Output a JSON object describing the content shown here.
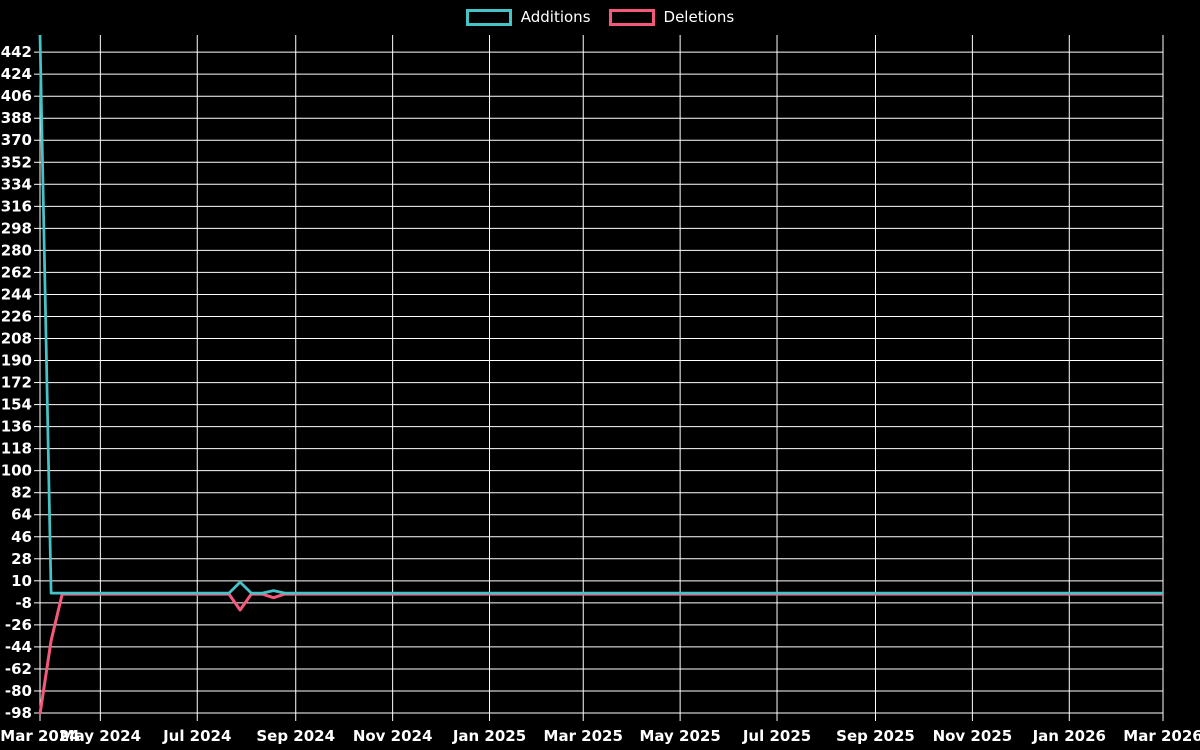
{
  "legend": {
    "items": [
      {
        "label": "Additions"
      },
      {
        "label": "Deletions"
      }
    ]
  },
  "chart_data": {
    "type": "line",
    "title": "",
    "xlabel": "",
    "ylabel": "",
    "legend_position": "top-center",
    "grid": true,
    "colors": {
      "background": "#000000",
      "grid": "#ffffff",
      "text": "#ffffff",
      "additions": "#46c3c6",
      "deletions": "#f4597b"
    },
    "x_axis": {
      "type": "time",
      "start": "2024-03-24",
      "end": "2026-03-01",
      "tick_labels": [
        {
          "label": "Mar 2024",
          "date": "2024-03-24"
        },
        {
          "label": "May 2024",
          "date": "2024-05-01"
        },
        {
          "label": "Jul 2024",
          "date": "2024-07-01"
        },
        {
          "label": "Sep 2024",
          "date": "2024-09-01"
        },
        {
          "label": "Nov 2024",
          "date": "2024-11-01"
        },
        {
          "label": "Jan 2025",
          "date": "2025-01-01"
        },
        {
          "label": "Mar 2025",
          "date": "2025-03-01"
        },
        {
          "label": "May 2025",
          "date": "2025-05-01"
        },
        {
          "label": "Jul 2025",
          "date": "2025-07-01"
        },
        {
          "label": "Sep 2025",
          "date": "2025-09-01"
        },
        {
          "label": "Nov 2025",
          "date": "2025-11-01"
        },
        {
          "label": "Jan 2026",
          "date": "2026-01-01"
        },
        {
          "label": "Mar 2026",
          "date": "2026-03-01"
        }
      ]
    },
    "y_axis": {
      "min": -98,
      "max": 456,
      "grid_step": 18,
      "tick_labels": [
        442,
        424,
        406,
        388,
        370,
        352,
        334,
        316,
        298,
        280,
        262,
        244,
        226,
        208,
        190,
        172,
        154,
        136,
        118,
        100,
        82,
        64,
        46,
        28,
        10,
        -8,
        -26,
        -44,
        -62,
        -80,
        -98
      ]
    },
    "series": [
      {
        "name": "Additions",
        "color": "#46c3c6",
        "note": "weekly values; value is 0 on all weeks between listed points",
        "points": [
          [
            "2024-03-24",
            456
          ],
          [
            "2024-03-31",
            0
          ],
          [
            "2024-07-21",
            0
          ],
          [
            "2024-07-28",
            9
          ],
          [
            "2024-08-04",
            0
          ],
          [
            "2024-08-11",
            0
          ],
          [
            "2024-08-18",
            2
          ],
          [
            "2024-08-25",
            0
          ],
          [
            "2026-03-01",
            0
          ]
        ]
      },
      {
        "name": "Deletions",
        "color": "#f4597b",
        "note": "weekly values; value is 0 on all weeks between listed points",
        "points": [
          [
            "2024-03-24",
            -98
          ],
          [
            "2024-03-31",
            -38
          ],
          [
            "2024-04-07",
            0
          ],
          [
            "2024-07-21",
            0
          ],
          [
            "2024-07-28",
            -13
          ],
          [
            "2024-08-04",
            0
          ],
          [
            "2024-08-11",
            0
          ],
          [
            "2024-08-18",
            -3
          ],
          [
            "2024-08-25",
            0
          ],
          [
            "2026-03-01",
            0
          ]
        ]
      }
    ]
  }
}
